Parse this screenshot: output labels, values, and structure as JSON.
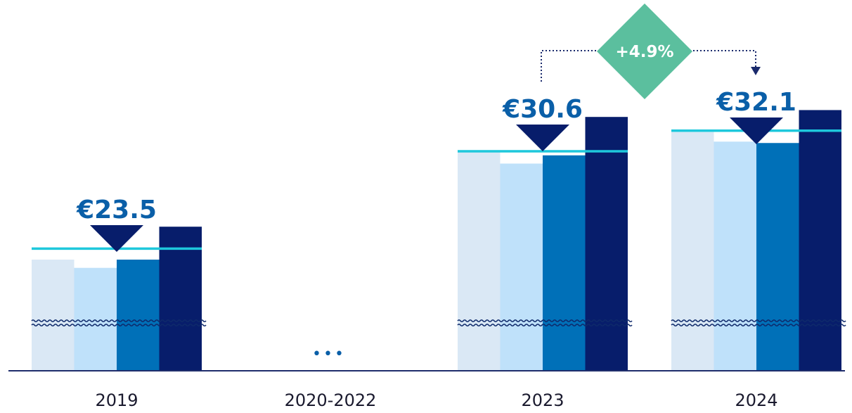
{
  "chart_data": {
    "type": "bar",
    "categories": [
      "2019",
      "2020-2022",
      "2023",
      "2024"
    ],
    "gap_marker": "•••",
    "bars_per_group": 4,
    "bar_colors": [
      "#dae8f5",
      "#bfe1fa",
      "#0070b8",
      "#071d6b"
    ],
    "mean_line_color": "#1ec8dc",
    "baseline_color": "#1f2d6b",
    "axis_break": true,
    "groups": [
      {
        "category": "2019",
        "values": [
          22.7,
          22.1,
          22.7,
          25.1
        ],
        "highlight": 23.5,
        "label": "€23.5"
      },
      {
        "category": "2020-2022",
        "values": [],
        "highlight": null,
        "label": ""
      },
      {
        "category": "2023",
        "values": [
          30.6,
          29.7,
          30.3,
          33.1
        ],
        "highlight": 30.6,
        "label": "€30.6"
      },
      {
        "category": "2024",
        "values": [
          32.0,
          31.3,
          31.2,
          33.6
        ],
        "highlight": 32.1,
        "label": "€32.1"
      }
    ],
    "change": {
      "label": "+4.9%",
      "from": "2023",
      "to": "2024",
      "color": "#5bbf9e"
    },
    "colors": {
      "value_text": "#0a5fa8",
      "pointer": "#071d6b",
      "connector": "#1a2a6c"
    }
  }
}
